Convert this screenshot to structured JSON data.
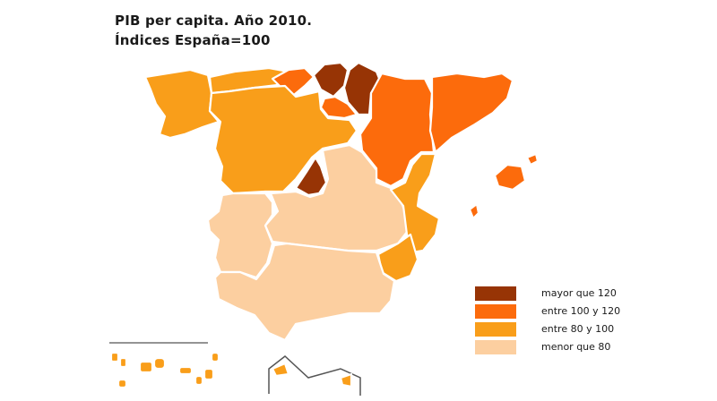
{
  "title": {
    "line1": "PIB per capita. Año 2010.",
    "line2": "Índices España=100"
  },
  "colors": {
    "mayor_120": "#973405",
    "entre_100_120": "#fc6b0c",
    "entre_80_100": "#f99e1a",
    "menor_80": "#fccfa0"
  },
  "legend": [
    {
      "label": "mayor que 120",
      "color_key": "mayor_120"
    },
    {
      "label": "entre 100 y 120",
      "color_key": "entre_100_120"
    },
    {
      "label": "entre 80 y 100",
      "color_key": "entre_80_100"
    },
    {
      "label": "menor que 80",
      "color_key": "menor_80"
    }
  ],
  "regions": [
    {
      "id": "galicia",
      "class": "entre_80_100"
    },
    {
      "id": "asturias",
      "class": "entre_80_100"
    },
    {
      "id": "cantabria",
      "class": "entre_100_120"
    },
    {
      "id": "pais-vasco",
      "class": "mayor_120"
    },
    {
      "id": "navarra",
      "class": "mayor_120"
    },
    {
      "id": "la-rioja",
      "class": "entre_100_120"
    },
    {
      "id": "aragon",
      "class": "entre_100_120"
    },
    {
      "id": "cataluna",
      "class": "entre_100_120"
    },
    {
      "id": "castilla-leon",
      "class": "entre_80_100"
    },
    {
      "id": "madrid",
      "class": "mayor_120"
    },
    {
      "id": "castilla-la-mancha",
      "class": "menor_80"
    },
    {
      "id": "comunidad-valenciana",
      "class": "entre_80_100"
    },
    {
      "id": "baleares",
      "class": "entre_100_120"
    },
    {
      "id": "extremadura",
      "class": "menor_80"
    },
    {
      "id": "murcia",
      "class": "entre_80_100"
    },
    {
      "id": "andalucia",
      "class": "menor_80"
    },
    {
      "id": "canarias",
      "class": "entre_80_100"
    },
    {
      "id": "ceuta",
      "class": "entre_80_100"
    },
    {
      "id": "melilla",
      "class": "entre_80_100"
    }
  ]
}
